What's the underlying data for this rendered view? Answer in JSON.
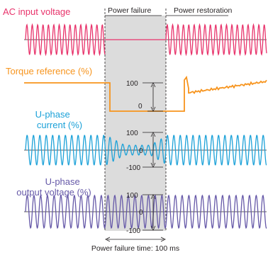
{
  "labels": {
    "power_failure": "Power failure",
    "power_restoration": "Power restoration",
    "power_failure_time": "Power failure time: 100 ms"
  },
  "signals": {
    "ac": {
      "label_lines": [
        "AC input voltage"
      ]
    },
    "torque": {
      "label_lines": [
        "Torque reference (%)"
      ],
      "scale_labels": [
        "100",
        "0"
      ]
    },
    "current": {
      "label_lines": [
        "U-phase",
        "current (%)"
      ],
      "scale_labels": [
        "100",
        "0",
        "-100"
      ]
    },
    "voltage": {
      "label_lines": [
        "U-phase",
        "output voltage (%)"
      ],
      "scale_labels": [
        "100",
        "0",
        "-100"
      ]
    }
  },
  "colors": {
    "ac": "#e8336b",
    "torque": "#f7941d",
    "current": "#1ba1d8",
    "voltage": "#6659a8",
    "shade": "#dcdcdc",
    "axis": "#231f20"
  }
}
